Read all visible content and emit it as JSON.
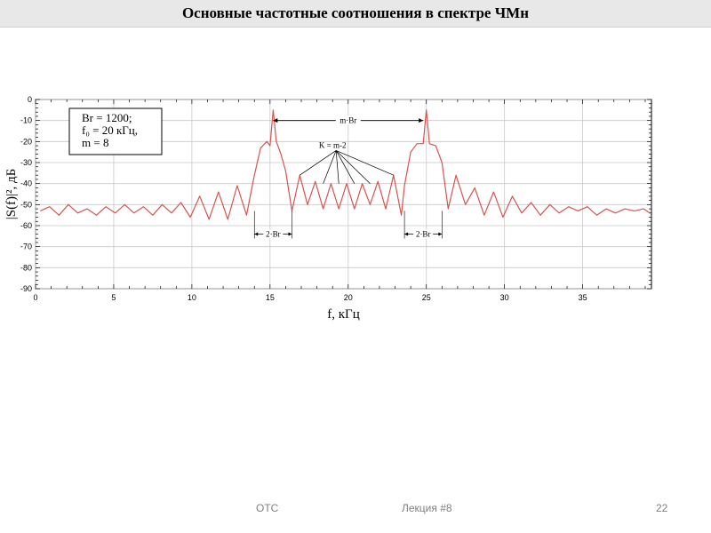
{
  "slide": {
    "title": "Основные частотные соотношения в спектре ЧМн",
    "footer_left": "ОТС",
    "footer_center": "Лекция #8",
    "page_number": "22"
  },
  "chart_data": {
    "type": "line",
    "xlabel": "f, кГц",
    "ylabel": "|S(f)|², дБ",
    "xlim": [
      0,
      39.4
    ],
    "ylim": [
      -90,
      0
    ],
    "xticks": [
      0,
      5,
      10,
      15,
      20,
      25,
      30,
      35
    ],
    "yticks": [
      0,
      -10,
      -20,
      -30,
      -40,
      -50,
      -60,
      -70,
      -80,
      -90
    ],
    "grid": true,
    "line_color": "#d9534f",
    "legend_box": {
      "line1": "Br = 1200;",
      "line2": "f₀ = 20 кГц,",
      "line3": "m = 8"
    },
    "series": [
      {
        "x": [
          0.3,
          0.9,
          1.5,
          2.1,
          2.7,
          3.3,
          3.9,
          4.5,
          5.1,
          5.7,
          6.3,
          6.9,
          7.5,
          8.1,
          8.7,
          9.3,
          9.9,
          10.5,
          11.1,
          11.7,
          12.3,
          12.9,
          13.5,
          14.0,
          14.4,
          14.8,
          15.0,
          15.2,
          15.4,
          15.7,
          16.0,
          16.4,
          16.9,
          17.4,
          17.9,
          18.4,
          18.9,
          19.4,
          19.9,
          20.4,
          20.9,
          21.4,
          21.9,
          22.4,
          22.9,
          23.4,
          23.6,
          24.0,
          24.4,
          24.8,
          25.0,
          25.2,
          25.6,
          26.0,
          26.4,
          26.9,
          27.5,
          28.1,
          28.7,
          29.3,
          29.9,
          30.5,
          31.1,
          31.7,
          32.3,
          32.9,
          33.5,
          34.1,
          34.7,
          35.3,
          35.9,
          36.5,
          37.1,
          37.7,
          38.3,
          38.9,
          39.3
        ],
        "y": [
          -53,
          -51,
          -55,
          -50,
          -54,
          -52,
          -55,
          -51,
          -54,
          -50,
          -54,
          -51,
          -55,
          -50,
          -54,
          -49,
          -56,
          -46,
          -57,
          -44,
          -57,
          -41,
          -55,
          -36,
          -23,
          -20,
          -22,
          -5,
          -20,
          -26,
          -34,
          -53,
          -36,
          -50,
          -39,
          -52,
          -40,
          -52,
          -40,
          -52,
          -40,
          -50,
          -39,
          -52,
          -36,
          -55,
          -41,
          -25,
          -21,
          -21,
          -5,
          -21,
          -22,
          -30,
          -52,
          -36,
          -50,
          -42,
          -55,
          -44,
          -56,
          -46,
          -54,
          -49,
          -55,
          -50,
          -54,
          -51,
          -53,
          -51,
          -55,
          -52,
          -54,
          -52,
          -53,
          -52,
          -54
        ]
      }
    ],
    "annotations": {
      "m_br": "m·Br",
      "k": "K = m-2",
      "two_br_left": "2·Br",
      "two_br_right": "2·Br"
    }
  }
}
